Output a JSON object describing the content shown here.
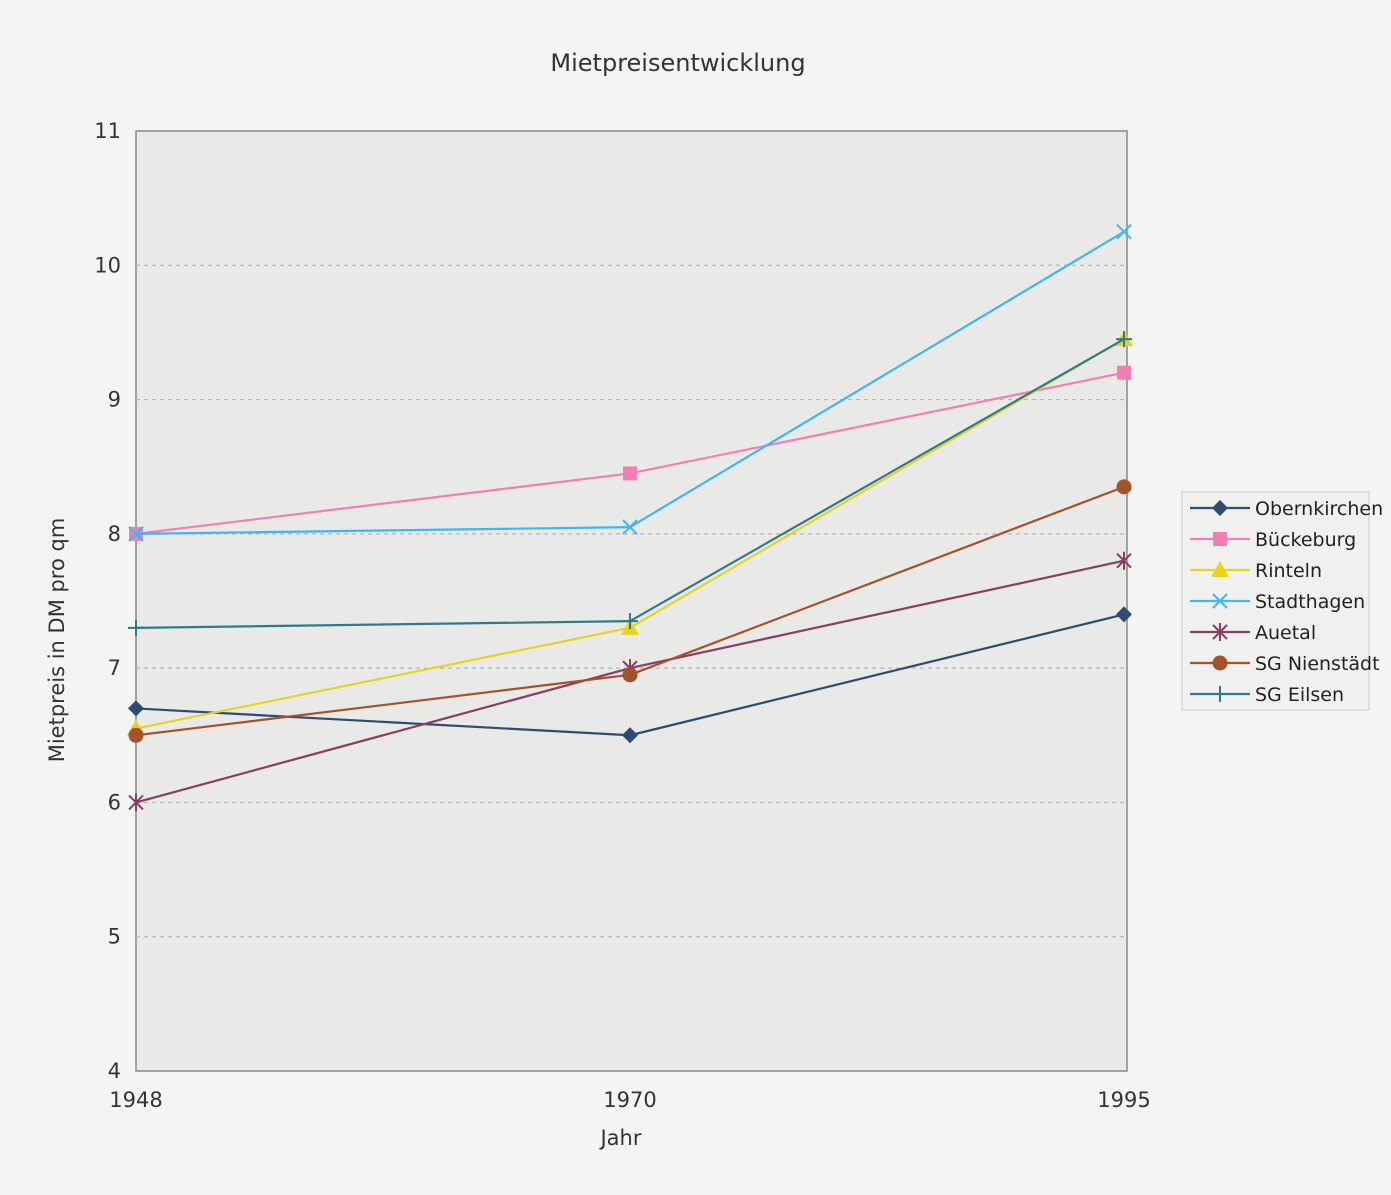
{
  "chart_data": {
    "type": "line",
    "title": "Mietpreisentwicklung",
    "xlabel": "Jahr",
    "ylabel": "Mietpreis in DM pro qm",
    "categories": [
      "1948",
      "1970",
      "1995"
    ],
    "ylim": [
      4,
      11
    ],
    "yticks": [
      "4",
      "5",
      "6",
      "7",
      "8",
      "9",
      "10",
      "11"
    ],
    "grid": "horizontal dashed",
    "legend_position": "right",
    "series": [
      {
        "name": "Obernkirchen",
        "values": [
          6.7,
          6.5,
          7.4
        ],
        "color": "#2f4a73",
        "marker": "diamond"
      },
      {
        "name": "Bückeburg",
        "values": [
          8.0,
          8.45,
          9.2
        ],
        "color": "#f17fb5",
        "marker": "square"
      },
      {
        "name": "Rinteln",
        "values": [
          6.55,
          7.3,
          9.45
        ],
        "color": "#e8d420",
        "marker": "triangle"
      },
      {
        "name": "Stadthagen",
        "values": [
          8.0,
          8.05,
          10.25
        ],
        "color": "#3fb6f2",
        "marker": "x"
      },
      {
        "name": "Auetal",
        "values": [
          6.0,
          7.0,
          7.8
        ],
        "color": "#8a3c64",
        "marker": "star"
      },
      {
        "name": "SG Nienstädt",
        "values": [
          6.5,
          6.95,
          8.35
        ],
        "color": "#a3522b",
        "marker": "circle"
      },
      {
        "name": "SG Eilsen",
        "values": [
          7.3,
          7.35,
          9.45
        ],
        "color": "#2d7b8a",
        "marker": "plus"
      }
    ]
  }
}
